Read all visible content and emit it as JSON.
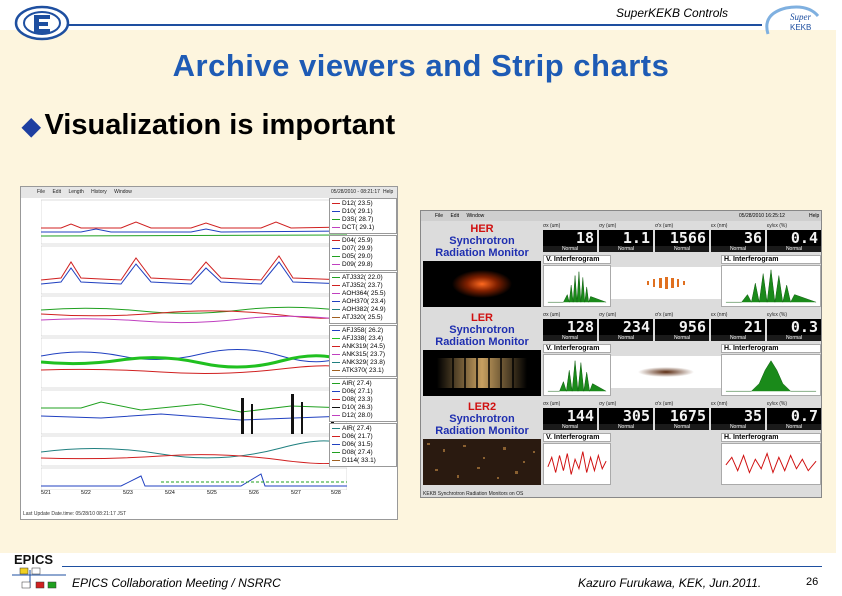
{
  "header": {
    "label": "SuperKEKB Controls"
  },
  "title": "Archive viewers and Strip charts",
  "bullet": "Visualization is important",
  "footer": {
    "left": "EPICS Collaboration Meeting / NSRRC",
    "right": "Kazuro Furukawa, KEK, Jun.2011.",
    "page": "26",
    "epics_logo": "EPICS"
  },
  "colors": {
    "title": "#1e5bb5",
    "rule": "#1e4fa0",
    "cream": "#fdf5de"
  },
  "archive_viewer": {
    "menu": [
      "File",
      "Edit",
      "Length",
      "History",
      "Window"
    ],
    "timestamp": "05/28/2010 - 08:21:17",
    "help": "Help",
    "legend_groups": [
      [
        "D12( 23.5)",
        "D10( 29.1)",
        "D3S( 28.7)",
        "DCT( 29.1)"
      ],
      [
        "D04( 25.9)",
        "D07( 29.9)",
        "D05( 29.0)",
        "D09( 29.8)"
      ],
      [
        "ATJ332( 22.0)",
        "ATJ352( 23.7)",
        "AOH364( 25.5)",
        "AOH370( 23.4)",
        "AOH382( 24.9)",
        "ATJ320( 25.5)"
      ],
      [
        "AFJ358( 26.2)",
        "AFJ338( 23.4)",
        "ANK319( 24.5)",
        "ANK315( 23.7)",
        "ANK329( 23.8)",
        "ATK370( 23.1)"
      ],
      [
        "AIR( 27.4)",
        "D06( 27.1)",
        "D08( 23.3)",
        "D10( 26.3)",
        "D12( 28.0)"
      ],
      [
        "AIR( 27.4)",
        "D06( 21.7)",
        "D06( 31.5)",
        "D08( 27.4)",
        "D114( 33.1)"
      ]
    ],
    "x_ticks": [
      "5/21",
      "5/22",
      "5/23",
      "5/24",
      "5/25",
      "5/26",
      "5/27",
      "5/28"
    ],
    "status": "Last Update Date.time: 05/28/10 08:21:17 JST"
  },
  "sr_monitor": {
    "menu": [
      "File",
      "Edit",
      "Window"
    ],
    "timestamp": "05/28/2010 16:25:12",
    "help": "Help",
    "display_labels": [
      "σx (um)",
      "σy (um)",
      "σ'x (um)",
      "εx (nm)",
      "εy/εx (%)"
    ],
    "sections": [
      {
        "name_lines": [
          "HER",
          "Synchrotron",
          "Radiation Monitor"
        ],
        "values": [
          "18",
          "1.1",
          "1566",
          "36",
          "0.4"
        ],
        "state": "Normal"
      },
      {
        "name_lines": [
          "LER",
          "Synchrotron",
          "Radiation Monitor"
        ],
        "values": [
          "128",
          "234",
          "956",
          "21",
          "0.3"
        ],
        "state": "Normal"
      },
      {
        "name_lines": [
          "LER2",
          "Synchrotron",
          "Radiation Monitor"
        ],
        "values": [
          "144",
          "305",
          "1675",
          "35",
          "0.7"
        ],
        "state": "Normal"
      }
    ],
    "v_title": "V. Interferogram",
    "h_title": "H. Interferogram",
    "status": "KEKB Synchrotron Radiation Monitors on OS"
  }
}
